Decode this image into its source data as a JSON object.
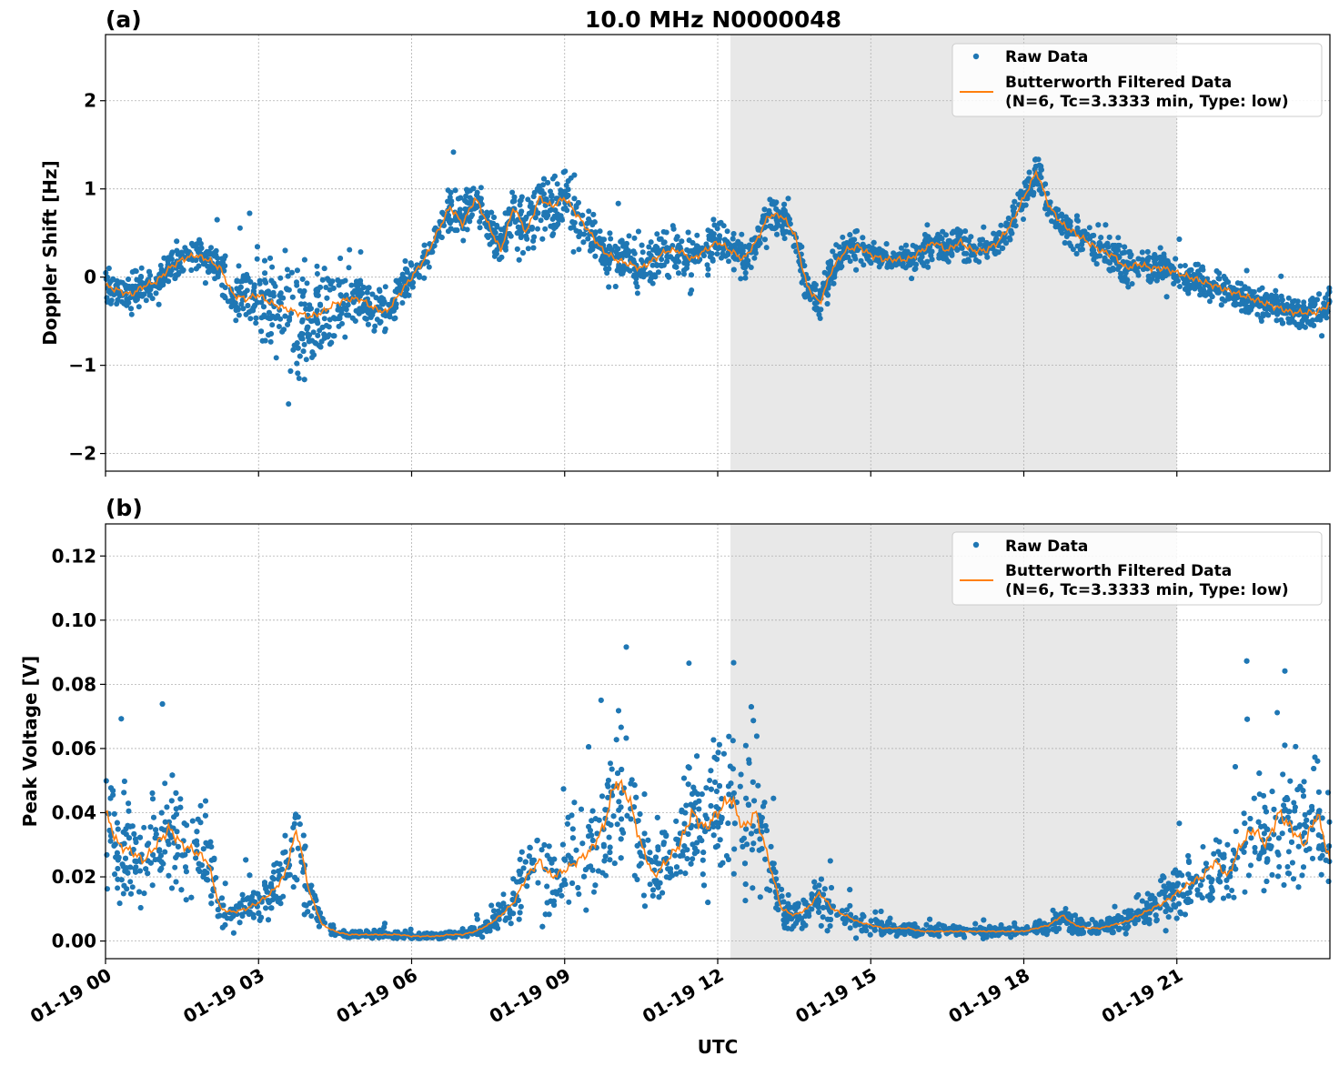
{
  "figure": {
    "title": "10.0 MHz N0000048",
    "xlabel": "UTC",
    "x_tick_labels": [
      "01-19 00",
      "01-19 03",
      "01-19 06",
      "01-19 09",
      "01-19 12",
      "01-19 15",
      "01-19 18",
      "01-19 21"
    ],
    "shaded_interval_hours": [
      12.25,
      21.0
    ],
    "colors": {
      "raw": "#1f77b4",
      "filtered": "#ff7f0e",
      "shade": "#e8e8e8",
      "grid": "#b0b0b0"
    }
  },
  "chart_data": [
    {
      "type": "scatter",
      "panel_label": "(a)",
      "ylabel": "Doppler Shift [Hz]",
      "xlim_hours": [
        0,
        24
      ],
      "ylim": [
        -2.2,
        2.75
      ],
      "yticks": [
        -2,
        -1,
        0,
        1,
        2
      ],
      "y_tick_labels": [
        "−2",
        "−1",
        "0",
        "1",
        "2"
      ],
      "grid": true,
      "legend_placement": "top-right",
      "series": [
        {
          "name": "Raw Data",
          "kind": "points",
          "spread_hz": [
            0.2,
            0.2,
            0.22,
            0.25,
            0.2,
            0.2,
            0.2,
            0.2,
            0.22,
            0.28,
            0.35,
            0.5,
            0.6,
            0.75,
            0.8,
            0.85,
            0.7,
            0.6,
            0.5,
            0.4,
            0.35,
            0.3,
            0.28,
            0.25,
            0.25,
            0.2,
            0.22,
            0.28,
            0.3,
            0.25,
            0.3,
            0.3,
            0.3,
            0.35,
            0.35,
            0.4,
            0.35,
            0.35,
            0.3,
            0.25,
            0.3,
            0.3,
            0.35,
            0.35,
            0.3,
            0.3,
            0.3,
            0.3,
            0.3,
            0.25,
            0.25,
            0.25,
            0.25,
            0.25,
            0.25,
            0.22,
            0.22,
            0.22,
            0.22,
            0.2,
            0.2,
            0.2,
            0.2,
            0.2,
            0.2,
            0.2,
            0.2,
            0.2,
            0.2,
            0.2,
            0.2,
            0.22,
            0.22,
            0.22,
            0.22,
            0.22,
            0.22,
            0.22,
            0.25,
            0.25,
            0.25,
            0.22,
            0.2,
            0.2,
            0.2,
            0.2,
            0.2,
            0.2,
            0.2,
            0.2,
            0.2,
            0.2,
            0.2,
            0.2,
            0.2,
            0.2,
            0.2
          ]
        },
        {
          "name": "Butterworth Filtered Data\n(N=6, Tc=3.3333 min, Type: low)",
          "kind": "line"
        }
      ],
      "filtered_hz": [
        -0.1,
        -0.15,
        -0.2,
        -0.1,
        -0.05,
        0.1,
        0.2,
        0.25,
        0.2,
        0.1,
        -0.2,
        -0.25,
        -0.2,
        -0.3,
        -0.35,
        -0.4,
        -0.45,
        -0.4,
        -0.3,
        -0.25,
        -0.25,
        -0.35,
        -0.4,
        -0.2,
        0.0,
        0.2,
        0.5,
        0.8,
        0.6,
        0.9,
        0.6,
        0.3,
        0.8,
        0.5,
        0.9,
        0.8,
        0.9,
        0.7,
        0.5,
        0.3,
        0.2,
        0.15,
        0.1,
        0.2,
        0.3,
        0.3,
        0.2,
        0.3,
        0.4,
        0.3,
        0.2,
        0.4,
        0.7,
        0.7,
        0.5,
        -0.1,
        -0.3,
        0.1,
        0.3,
        0.35,
        0.25,
        0.2,
        0.2,
        0.2,
        0.3,
        0.4,
        0.3,
        0.4,
        0.3,
        0.3,
        0.4,
        0.6,
        0.9,
        1.2,
        0.8,
        0.6,
        0.5,
        0.4,
        0.3,
        0.25,
        0.1,
        0.15,
        0.1,
        0.1,
        0.05,
        0.0,
        -0.05,
        -0.1,
        -0.15,
        -0.2,
        -0.25,
        -0.3,
        -0.35,
        -0.4,
        -0.4,
        -0.4,
        -0.3
      ]
    },
    {
      "type": "scatter",
      "panel_label": "(b)",
      "ylabel": "Peak Voltage [V]",
      "xlim_hours": [
        0,
        24
      ],
      "ylim": [
        -0.0055,
        0.13
      ],
      "yticks": [
        0.0,
        0.02,
        0.04,
        0.06,
        0.08,
        0.1,
        0.12
      ],
      "y_tick_labels": [
        "0.00",
        "0.02",
        "0.04",
        "0.06",
        "0.08",
        "0.10",
        "0.12"
      ],
      "grid": true,
      "legend_placement": "top-right",
      "series": [
        {
          "name": "Raw Data",
          "kind": "points"
        },
        {
          "name": "Butterworth Filtered Data\n(N=6, Tc=3.3333 min, Type: low)",
          "kind": "line"
        }
      ],
      "filtered_v": [
        0.04,
        0.03,
        0.028,
        0.025,
        0.03,
        0.035,
        0.03,
        0.028,
        0.025,
        0.01,
        0.009,
        0.01,
        0.012,
        0.015,
        0.02,
        0.035,
        0.015,
        0.005,
        0.003,
        0.002,
        0.002,
        0.002,
        0.002,
        0.002,
        0.0015,
        0.0015,
        0.0015,
        0.002,
        0.002,
        0.003,
        0.005,
        0.008,
        0.012,
        0.02,
        0.025,
        0.02,
        0.022,
        0.025,
        0.028,
        0.035,
        0.05,
        0.045,
        0.03,
        0.02,
        0.025,
        0.03,
        0.04,
        0.035,
        0.04,
        0.045,
        0.035,
        0.04,
        0.025,
        0.01,
        0.008,
        0.01,
        0.015,
        0.01,
        0.008,
        0.006,
        0.005,
        0.004,
        0.004,
        0.004,
        0.003,
        0.003,
        0.003,
        0.003,
        0.003,
        0.003,
        0.003,
        0.003,
        0.003,
        0.004,
        0.005,
        0.008,
        0.005,
        0.004,
        0.004,
        0.005,
        0.006,
        0.008,
        0.01,
        0.012,
        0.015,
        0.018,
        0.02,
        0.025,
        0.02,
        0.03,
        0.035,
        0.03,
        0.04,
        0.035,
        0.03,
        0.04,
        0.025
      ]
    }
  ]
}
